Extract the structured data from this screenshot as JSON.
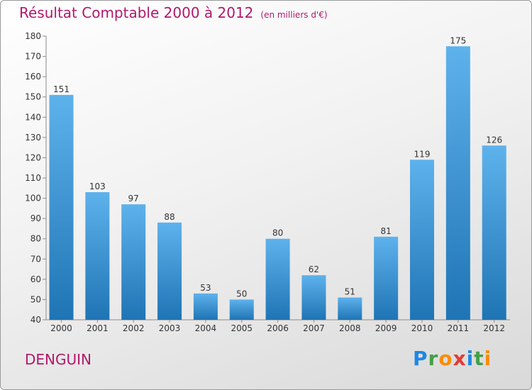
{
  "title": "Résultat Comptable 2000 à 2012",
  "subtitle": "(en milliers d'€)",
  "commune": "DENGUIN",
  "logo": {
    "letters": [
      {
        "ch": "P",
        "color": "#1e88e5"
      },
      {
        "ch": "r",
        "color": "#43a047"
      },
      {
        "ch": "o",
        "color": "#fb8c00"
      },
      {
        "ch": "x",
        "color": "#e53935"
      },
      {
        "ch": "i",
        "color": "#1e88e5"
      },
      {
        "ch": "t",
        "color": "#43a047"
      },
      {
        "ch": "i",
        "color": "#fb8c00"
      }
    ]
  },
  "colors": {
    "title": "#b0196b",
    "bar_light": "#5eb2ec",
    "bar_dark": "#1f74b4",
    "axis": "#8a8a8a"
  },
  "chart_data": {
    "type": "bar",
    "title": "Résultat Comptable 2000 à 2012",
    "subtitle": "(en milliers d'€)",
    "categories": [
      "2000",
      "2001",
      "2002",
      "2003",
      "2004",
      "2005",
      "2006",
      "2007",
      "2008",
      "2009",
      "2010",
      "2011",
      "2012"
    ],
    "values": [
      151,
      103,
      97,
      88,
      53,
      50,
      80,
      62,
      51,
      81,
      119,
      175,
      126
    ],
    "ylim": [
      40,
      180
    ],
    "yticks": [
      40,
      50,
      60,
      70,
      80,
      90,
      100,
      110,
      120,
      130,
      140,
      150,
      160,
      170,
      180
    ],
    "xlabel": "",
    "ylabel": "",
    "grid": false
  }
}
